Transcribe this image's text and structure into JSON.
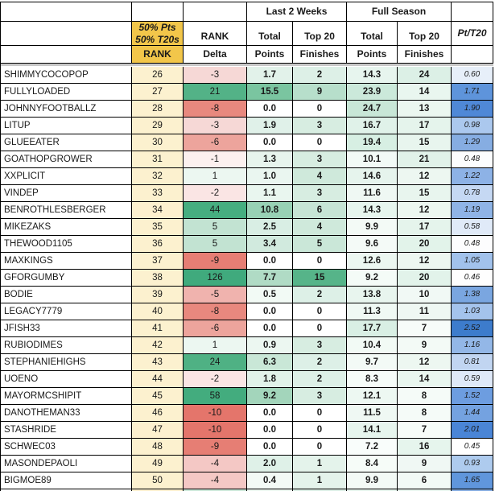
{
  "table": {
    "headers": {
      "group_last2weeks": "Last 2 Weeks",
      "group_fullseason": "Full Season",
      "rank_method_line1": "50% Pts",
      "rank_method_line2": "50% T20s",
      "rank_method_sub": "RANK",
      "rank_delta_top": "RANK",
      "rank_delta_sub": "Delta",
      "total": "Total",
      "points": "Points",
      "top20": "Top 20",
      "finishes": "Finishes",
      "pt_per_t20": "Pt/T20"
    },
    "colors": {
      "header_gold": "#f2c64a",
      "rank_cell_yellow": "#fcf1cf",
      "separator_gray": "#c8c8c8",
      "border_black": "#000000",
      "delta_negative_max": "#e4756b",
      "delta_positive_max": "#40aa7d",
      "points_green_max": "#56b489",
      "pt_blue_max": "#3d7ccc"
    },
    "rows": [
      {
        "name": "SHIMMYCOCOPOP",
        "rank": "26",
        "delta": "-3",
        "l2w_points": "1.7",
        "l2w_top20": "2",
        "fs_points": "14.3",
        "fs_top20": "24",
        "pt_t20": "0.60",
        "bg": {
          "delta": "#f6d8d6",
          "l2w_points": "#e2f2ea",
          "l2w_top20": "#ddf0e7",
          "fs_points": "#e7f5ee",
          "fs_top20": "#dcf0e6",
          "pt_t20": "#e7eff9"
        }
      },
      {
        "name": "FULLYLOADED",
        "rank": "27",
        "delta": "21",
        "l2w_points": "15.5",
        "l2w_top20": "9",
        "fs_points": "23.9",
        "fs_top20": "14",
        "pt_t20": "1.71",
        "bg": {
          "delta": "#53b287",
          "l2w_points": "#7ac5a0",
          "l2w_top20": "#b7dfcb",
          "fs_points": "#cbe9da",
          "fs_top20": "#e9f6ef",
          "pt_t20": "#5e94db"
        }
      },
      {
        "name": "JOHNNYFOOTBALLZ",
        "rank": "28",
        "delta": "-8",
        "l2w_points": "0.0",
        "l2w_top20": "0",
        "fs_points": "24.7",
        "fs_top20": "13",
        "pt_t20": "1.90",
        "bg": {
          "delta": "#e8887e",
          "l2w_points": "#ffffff",
          "l2w_top20": "#ffffff",
          "fs_points": "#c8e7d7",
          "fs_top20": "#ebf7f0",
          "pt_t20": "#4f88d7"
        }
      },
      {
        "name": "LITUP",
        "rank": "29",
        "delta": "-3",
        "l2w_points": "1.9",
        "l2w_top20": "3",
        "fs_points": "16.7",
        "fs_top20": "17",
        "pt_t20": "0.98",
        "bg": {
          "delta": "#f6d8d6",
          "l2w_points": "#e0f1e9",
          "l2w_top20": "#d7ede1",
          "fs_points": "#e0f2e9",
          "fs_top20": "#e5f4ec",
          "pt_t20": "#abc8ee"
        }
      },
      {
        "name": "GLUEEATER",
        "rank": "30",
        "delta": "-6",
        "l2w_points": "0.0",
        "l2w_top20": "0",
        "fs_points": "19.4",
        "fs_top20": "15",
        "pt_t20": "1.29",
        "bg": {
          "delta": "#eda49c",
          "l2w_points": "#ffffff",
          "l2w_top20": "#ffffff",
          "fs_points": "#d7efe3",
          "fs_top20": "#e8f5ee",
          "pt_t20": "#86ade2"
        }
      },
      {
        "name": "GOATHOPGROWER",
        "rank": "31",
        "delta": "-1",
        "l2w_points": "1.3",
        "l2w_top20": "3",
        "fs_points": "10.1",
        "fs_top20": "21",
        "pt_t20": "0.48",
        "bg": {
          "delta": "#fcf0ef",
          "l2w_points": "#e7f4ed",
          "l2w_top20": "#d7ede1",
          "fs_points": "#f2faf6",
          "fs_top20": "#e1f2e9",
          "pt_t20": "#fcfdfe"
        }
      },
      {
        "name": "XXPLICIT",
        "rank": "32",
        "delta": "1",
        "l2w_points": "1.0",
        "l2w_top20": "4",
        "fs_points": "14.6",
        "fs_top20": "12",
        "pt_t20": "1.22",
        "bg": {
          "delta": "#ecf7f1",
          "l2w_points": "#eaf6f0",
          "l2w_top20": "#cfe9db",
          "fs_points": "#e6f4ed",
          "fs_top20": "#edf7f1",
          "pt_t20": "#8db2e6"
        }
      },
      {
        "name": "VINDEP",
        "rank": "33",
        "delta": "-2",
        "l2w_points": "1.1",
        "l2w_top20": "3",
        "fs_points": "11.6",
        "fs_top20": "15",
        "pt_t20": "0.78",
        "bg": {
          "delta": "#fae5e4",
          "l2w_points": "#e9f6ef",
          "l2w_top20": "#d7ede1",
          "fs_points": "#eff8f3",
          "fs_top20": "#e8f5ee",
          "pt_t20": "#c5d8f3"
        }
      },
      {
        "name": "BENROTHLESBERGER",
        "rank": "34",
        "delta": "44",
        "l2w_points": "10.8",
        "l2w_top20": "6",
        "fs_points": "14.3",
        "fs_top20": "12",
        "pt_t20": "1.19",
        "bg": {
          "delta": "#46ae80",
          "l2w_points": "#98d1b5",
          "l2w_top20": "#c6e5d5",
          "fs_points": "#e7f5ee",
          "fs_top20": "#edf7f1",
          "pt_t20": "#8fb4e6"
        }
      },
      {
        "name": "MIKEZAKS",
        "rank": "35",
        "delta": "5",
        "l2w_points": "2.5",
        "l2w_top20": "4",
        "fs_points": "9.9",
        "fs_top20": "17",
        "pt_t20": "0.58",
        "bg": {
          "delta": "#c2e3d2",
          "l2w_points": "#d9eee4",
          "l2w_top20": "#cfe9db",
          "fs_points": "#f3faf6",
          "fs_top20": "#e5f4ec",
          "pt_t20": "#e0eaf8"
        }
      },
      {
        "name": "THEWOOD1105",
        "rank": "36",
        "delta": "5",
        "l2w_points": "3.4",
        "l2w_top20": "5",
        "fs_points": "9.6",
        "fs_top20": "20",
        "pt_t20": "0.48",
        "bg": {
          "delta": "#c2e3d2",
          "l2w_points": "#d1eade",
          "l2w_top20": "#cae7d8",
          "fs_points": "#f4faf7",
          "fs_top20": "#e2f3ea",
          "pt_t20": "#fdfdfe"
        }
      },
      {
        "name": "MAXKINGS",
        "rank": "37",
        "delta": "-9",
        "l2w_points": "0.0",
        "l2w_top20": "0",
        "fs_points": "12.6",
        "fs_top20": "12",
        "pt_t20": "1.05",
        "bg": {
          "delta": "#e67e74",
          "l2w_points": "#ffffff",
          "l2w_top20": "#ffffff",
          "fs_points": "#ecf7f1",
          "fs_top20": "#edf7f1",
          "pt_t20": "#a2c2ec"
        }
      },
      {
        "name": "GFORGUMBY",
        "rank": "38",
        "delta": "126",
        "l2w_points": "7.7",
        "l2w_top20": "15",
        "fs_points": "9.2",
        "fs_top20": "20",
        "pt_t20": "0.46",
        "bg": {
          "delta": "#40aa7d",
          "l2w_points": "#b0dbc5",
          "l2w_top20": "#56b489",
          "fs_points": "#f4fbf7",
          "fs_top20": "#e2f3ea",
          "pt_t20": "#fefefe"
        }
      },
      {
        "name": "BODIE",
        "rank": "39",
        "delta": "-5",
        "l2w_points": "0.5",
        "l2w_top20": "2",
        "fs_points": "13.8",
        "fs_top20": "10",
        "pt_t20": "1.38",
        "bg": {
          "delta": "#f0b3ae",
          "l2w_points": "#f2faf5",
          "l2w_top20": "#ddf0e7",
          "fs_points": "#e8f5ee",
          "fs_top20": "#f1f9f5",
          "pt_t20": "#7aa6e0"
        }
      },
      {
        "name": "LEGACY7779",
        "rank": "40",
        "delta": "-8",
        "l2w_points": "0.0",
        "l2w_top20": "0",
        "fs_points": "11.3",
        "fs_top20": "11",
        "pt_t20": "1.03",
        "bg": {
          "delta": "#e8887e",
          "l2w_points": "#ffffff",
          "l2w_top20": "#ffffff",
          "fs_points": "#f0f9f4",
          "fs_top20": "#eff8f3",
          "pt_t20": "#a4c3ec"
        }
      },
      {
        "name": "JFISH33",
        "rank": "41",
        "delta": "-6",
        "l2w_points": "0.0",
        "l2w_top20": "0",
        "fs_points": "17.7",
        "fs_top20": "7",
        "pt_t20": "2.52",
        "bg": {
          "delta": "#eda49c",
          "l2w_points": "#ffffff",
          "l2w_top20": "#ffffff",
          "fs_points": "#d9efe4",
          "fs_top20": "#f7fcf9",
          "pt_t20": "#3d7ccc"
        }
      },
      {
        "name": "RUBIODIMES",
        "rank": "42",
        "delta": "1",
        "l2w_points": "0.9",
        "l2w_top20": "3",
        "fs_points": "10.4",
        "fs_top20": "9",
        "pt_t20": "1.16",
        "bg": {
          "delta": "#ecf7f1",
          "l2w_points": "#ecf7f1",
          "l2w_top20": "#d7ede1",
          "fs_points": "#f2faf5",
          "fs_top20": "#f3faf6",
          "pt_t20": "#93b7e7"
        }
      },
      {
        "name": "STEPHANIEHIGHS",
        "rank": "43",
        "delta": "24",
        "l2w_points": "6.3",
        "l2w_top20": "2",
        "fs_points": "9.7",
        "fs_top20": "12",
        "pt_t20": "0.81",
        "bg": {
          "delta": "#4fb184",
          "l2w_points": "#c9e7d7",
          "l2w_top20": "#ddf0e7",
          "fs_points": "#f3faf6",
          "fs_top20": "#edf7f1",
          "pt_t20": "#c1d5f1"
        }
      },
      {
        "name": "UOENO",
        "rank": "44",
        "delta": "-2",
        "l2w_points": "1.8",
        "l2w_top20": "2",
        "fs_points": "8.3",
        "fs_top20": "14",
        "pt_t20": "0.59",
        "bg": {
          "delta": "#fae5e4",
          "l2w_points": "#e1f2e9",
          "l2w_top20": "#ddf0e7",
          "fs_points": "#f6fcf9",
          "fs_top20": "#e9f6ef",
          "pt_t20": "#dfe9f8"
        }
      },
      {
        "name": "MAYORMCSHIPIT",
        "rank": "45",
        "delta": "58",
        "l2w_points": "9.2",
        "l2w_top20": "3",
        "fs_points": "12.1",
        "fs_top20": "8",
        "pt_t20": "1.52",
        "bg": {
          "delta": "#43ac7e",
          "l2w_points": "#a3d5bb",
          "l2w_top20": "#d7ede1",
          "fs_points": "#edf8f2",
          "fs_top20": "#f5fbf8",
          "pt_t20": "#6d9de0"
        }
      },
      {
        "name": "DANOTHEMAN33",
        "rank": "46",
        "delta": "-10",
        "l2w_points": "0.0",
        "l2w_top20": "0",
        "fs_points": "11.5",
        "fs_top20": "8",
        "pt_t20": "1.44",
        "bg": {
          "delta": "#e4756b",
          "l2w_points": "#ffffff",
          "l2w_top20": "#ffffff",
          "fs_points": "#eff8f3",
          "fs_top20": "#f5fbf8",
          "pt_t20": "#74a2e0"
        }
      },
      {
        "name": "STASHRIDE",
        "rank": "47",
        "delta": "-10",
        "l2w_points": "0.0",
        "l2w_top20": "0",
        "fs_points": "14.1",
        "fs_top20": "7",
        "pt_t20": "2.01",
        "bg": {
          "delta": "#e4756b",
          "l2w_points": "#ffffff",
          "l2w_top20": "#ffffff",
          "fs_points": "#e7f5ee",
          "fs_top20": "#f7fcf9",
          "pt_t20": "#4a85d6"
        }
      },
      {
        "name": "SCHWEC03",
        "rank": "48",
        "delta": "-9",
        "l2w_points": "0.0",
        "l2w_top20": "0",
        "fs_points": "7.2",
        "fs_top20": "16",
        "pt_t20": "0.45",
        "bg": {
          "delta": "#e67e74",
          "l2w_points": "#ffffff",
          "l2w_top20": "#ffffff",
          "fs_points": "#f9fdfb",
          "fs_top20": "#e6f5ed",
          "pt_t20": "#ffffff"
        }
      },
      {
        "name": "MASONDEPAOLI",
        "rank": "49",
        "delta": "-4",
        "l2w_points": "2.0",
        "l2w_top20": "1",
        "fs_points": "8.4",
        "fs_top20": "9",
        "pt_t20": "0.93",
        "bg": {
          "delta": "#f4c8c5",
          "l2w_points": "#dff1e8",
          "l2w_top20": "#e4f3eb",
          "fs_points": "#f6fcf8",
          "fs_top20": "#f0f8f4",
          "pt_t20": "#aecbee"
        }
      },
      {
        "name": "BIGMOE89",
        "rank": "50",
        "delta": "-4",
        "l2w_points": "0.4",
        "l2w_top20": "1",
        "fs_points": "9.9",
        "fs_top20": "6",
        "pt_t20": "1.65",
        "bg": {
          "delta": "#f4c8c5",
          "l2w_points": "#f3faf6",
          "l2w_top20": "#e4f3eb",
          "fs_points": "#f3faf6",
          "fs_top20": "#f2faf6",
          "pt_t20": "#6096dc"
        }
      }
    ],
    "sliver_colors": [
      "#ffffff",
      "#fcf1cf",
      "#cde9da",
      "#eef8f2",
      "#ddf0e7",
      "#e7f5ee",
      "#eaf6f0",
      "#86ade2"
    ]
  }
}
